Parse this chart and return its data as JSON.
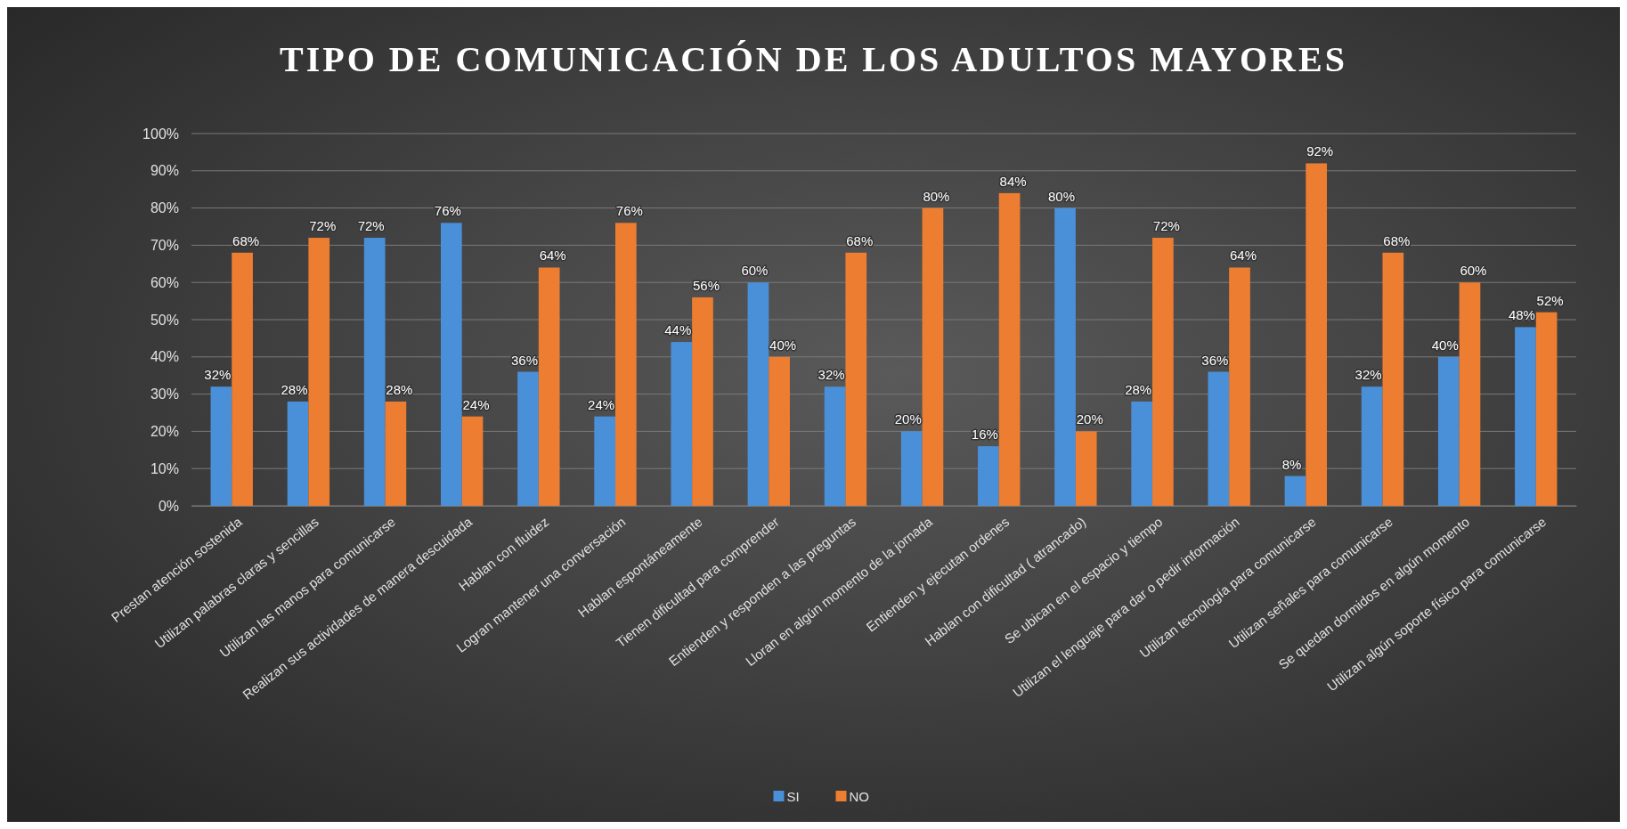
{
  "chart_data": {
    "type": "bar",
    "title": "TIPO DE COMUNICACIÓN DE LOS ADULTOS MAYORES",
    "categories": [
      "Prestan atención sostenida",
      "Utilizan palabras claras y sencillas",
      "Utilizan las manos para comunicarse",
      "Realizan sus actividades de manera descuidada",
      "Hablan con fluidez",
      "Logran mantener una conversación",
      "Hablan espontáneamente",
      "Tienen dificultad para comprender",
      "Entienden y responden a las preguntas",
      "Lloran en algún momento de la jornada",
      "Entienden y ejecutan ordenes",
      "Hablan con dificultad ( atrancado)",
      "Se ubican en el espacio y tiempo",
      "Utilizan el lenguaje para dar o pedir información",
      "Utilizan tecnología para comunicarse",
      "Utilizan señales para comunicarse",
      "Se quedan dormidos en algún momento",
      "Utilizan algún soporte físico para comunicarse"
    ],
    "series": [
      {
        "name": "SI",
        "color": "#4a90d9",
        "values": [
          32,
          28,
          72,
          76,
          36,
          24,
          44,
          60,
          32,
          20,
          16,
          80,
          28,
          36,
          8,
          32,
          40,
          48
        ],
        "value_labels": [
          "32%",
          "28%",
          "72%",
          "76%",
          "36%",
          "24%",
          "44%",
          "60%",
          "32%",
          "20%",
          "16%",
          "80%",
          "28%",
          "36%",
          "8%",
          "32%",
          "40%",
          "48%"
        ]
      },
      {
        "name": "NO",
        "color": "#ed7d31",
        "values": [
          68,
          72,
          28,
          24,
          64,
          76,
          56,
          40,
          68,
          80,
          84,
          20,
          72,
          64,
          92,
          68,
          60,
          52
        ],
        "value_labels": [
          "68%",
          "72%",
          "28%",
          "24%",
          "64%",
          "76%",
          "56%",
          "40%",
          "68%",
          "80%",
          "84%",
          "20%",
          "72%",
          "64%",
          "92%",
          "68%",
          "60%",
          "52%"
        ]
      }
    ],
    "ylim": [
      0,
      100
    ],
    "yticks": [
      {
        "value": 0,
        "label": "0%"
      },
      {
        "value": 10,
        "label": "10%"
      },
      {
        "value": 20,
        "label": "20%"
      },
      {
        "value": 30,
        "label": "30%"
      },
      {
        "value": 40,
        "label": "40%"
      },
      {
        "value": 50,
        "label": "50%"
      },
      {
        "value": 60,
        "label": "60%"
      },
      {
        "value": 70,
        "label": "70%"
      },
      {
        "value": 80,
        "label": "80%"
      },
      {
        "value": 90,
        "label": "90%"
      },
      {
        "value": 100,
        "label": "100%"
      }
    ],
    "grid": "y",
    "legend": "bottom"
  }
}
